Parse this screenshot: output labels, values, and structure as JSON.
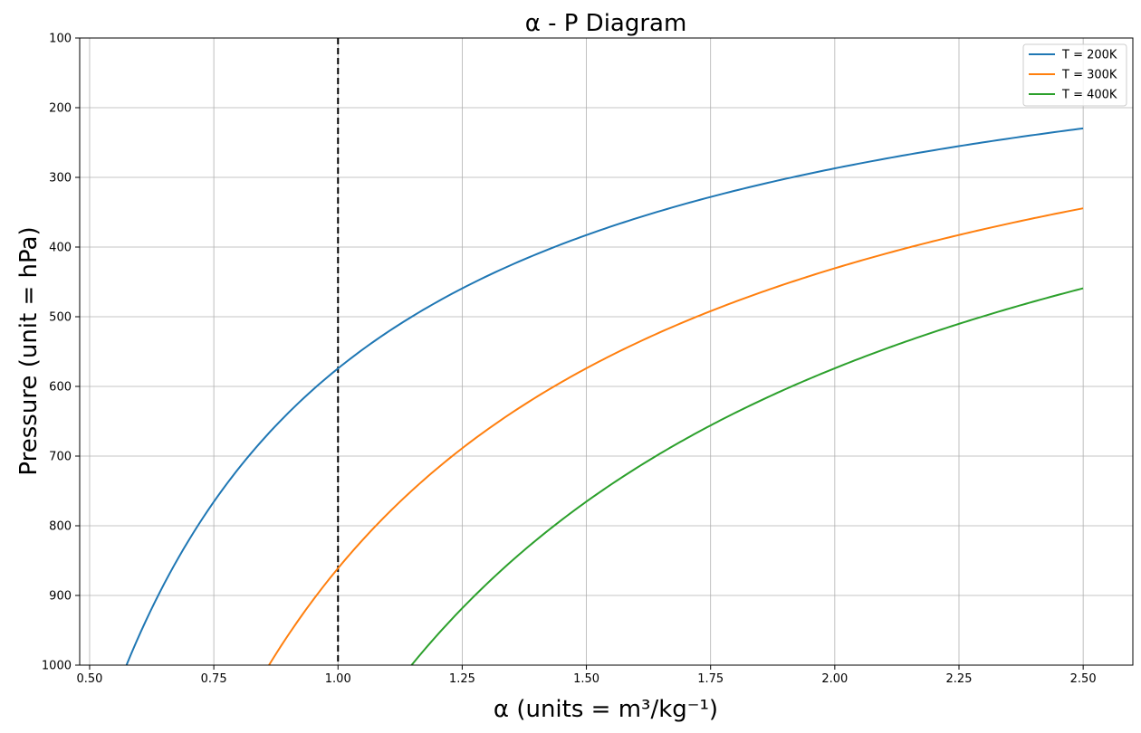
{
  "chart_data": {
    "type": "line",
    "title": "α - P Diagram",
    "xlabel": "α (units = m³/kg⁻¹)",
    "ylabel": "Pressure (unit = hPa)",
    "xlim": [
      0.48,
      2.6
    ],
    "ylim": [
      1000,
      100
    ],
    "y_inverted": true,
    "x_ticks": [
      "0.50",
      "0.75",
      "1.00",
      "1.25",
      "1.50",
      "1.75",
      "2.00",
      "2.25",
      "2.50"
    ],
    "y_ticks": [
      "100",
      "200",
      "300",
      "400",
      "500",
      "600",
      "700",
      "800",
      "900",
      "1000"
    ],
    "grid": true,
    "legend_position": "top-right",
    "reference_line": {
      "x": 1.0,
      "style": "dashed",
      "color": "#000000"
    },
    "series": [
      {
        "name": "T = 200K",
        "color": "#1f77b4",
        "x": [
          0.574,
          0.6,
          0.7,
          0.8,
          0.9,
          1.0,
          1.1,
          1.2,
          1.3,
          1.4,
          1.5,
          1.6,
          1.7,
          1.8,
          1.9,
          2.0,
          2.1,
          2.2,
          2.3,
          2.4,
          2.5
        ],
        "y": [
          1000,
          957,
          820,
          718,
          638,
          574,
          522,
          478,
          442,
          410,
          383,
          359,
          338,
          319,
          302,
          287,
          273,
          261,
          250,
          239,
          230
        ]
      },
      {
        "name": "T = 300K",
        "color": "#ff7f0e",
        "x": [
          0.861,
          0.9,
          1.0,
          1.1,
          1.2,
          1.3,
          1.4,
          1.5,
          1.6,
          1.7,
          1.8,
          1.9,
          2.0,
          2.1,
          2.2,
          2.3,
          2.4,
          2.5
        ],
        "y": [
          1000,
          957,
          861,
          783,
          718,
          662,
          615,
          574,
          538,
          507,
          478,
          453,
          431,
          410,
          391,
          374,
          359,
          344
        ]
      },
      {
        "name": "T = 400K",
        "color": "#2ca02c",
        "x": [
          1.148,
          1.2,
          1.3,
          1.4,
          1.5,
          1.6,
          1.7,
          1.8,
          1.9,
          2.0,
          2.1,
          2.2,
          2.3,
          2.4,
          2.5
        ],
        "y": [
          1000,
          957,
          883,
          820,
          765,
          718,
          675,
          638,
          604,
          574,
          547,
          522,
          499,
          478,
          459
        ]
      }
    ]
  }
}
